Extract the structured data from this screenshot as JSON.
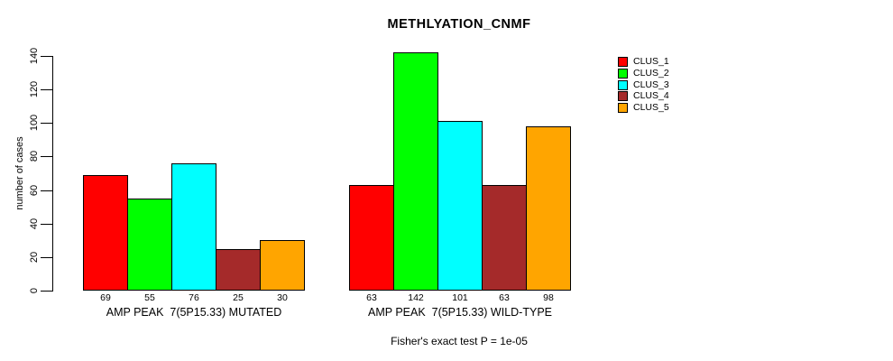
{
  "chart_data": {
    "type": "bar",
    "title": "METHLYATION_CNMF",
    "ylabel": "number of cases",
    "xlabel": "",
    "ylim": [
      0,
      140
    ],
    "yticks": [
      0,
      20,
      40,
      60,
      80,
      100,
      120,
      140
    ],
    "grid": false,
    "legend_position": "top-right-outside",
    "bar_value_labels_shown": true,
    "categories": [
      "AMP PEAK  7(5P15.33) MUTATED",
      "AMP PEAK  7(5P15.33) WILD-TYPE"
    ],
    "series": [
      {
        "name": "CLUS_1",
        "color": "#FF0000",
        "values": [
          69,
          63
        ]
      },
      {
        "name": "CLUS_2",
        "color": "#00FF00",
        "values": [
          55,
          142
        ]
      },
      {
        "name": "CLUS_3",
        "color": "#00FFFF",
        "values": [
          76,
          101
        ]
      },
      {
        "name": "CLUS_4",
        "color": "#A52A2A",
        "values": [
          25,
          63
        ]
      },
      {
        "name": "CLUS_5",
        "color": "#FFA500",
        "values": [
          30,
          98
        ]
      }
    ],
    "annotation": "Fisher's exact test P = 1e-05"
  }
}
